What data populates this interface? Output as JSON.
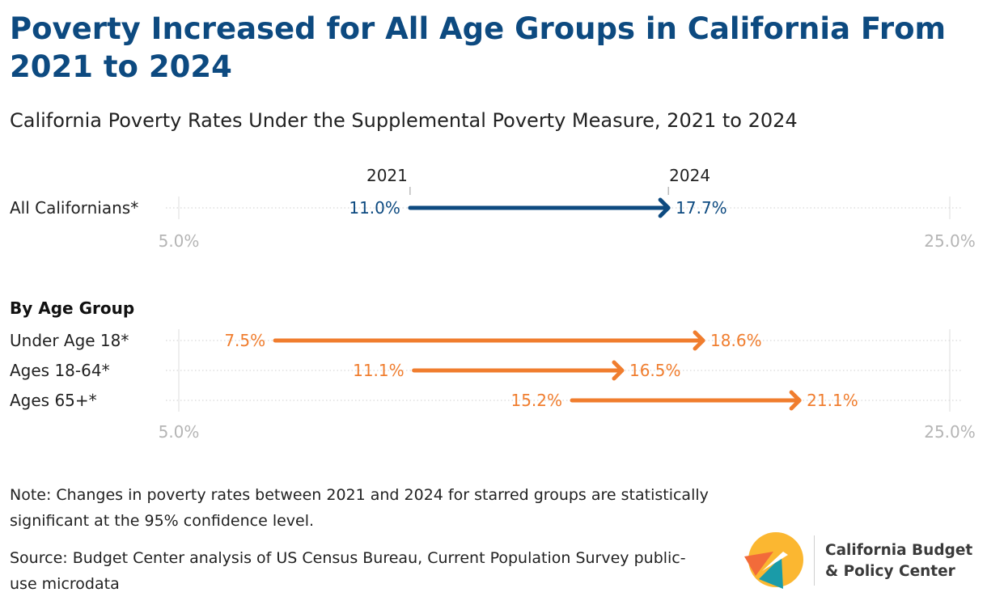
{
  "title": "Poverty Increased for All Age Groups in California From 2021 to 2024",
  "subtitle": "California Poverty Rates Under the Supplemental Poverty Measure, 2021 to 2024",
  "note": "Note: Changes in poverty rates between 2021 and 2024 for starred groups are statistically significant at the 95% confidence level.",
  "source": "Source: Budget Center analysis of US Census Bureau, Current Population Survey public-use microdata",
  "logo": {
    "line1": "California Budget",
    "line2": "& Policy Center",
    "colors": [
      "#fbb731",
      "#f26b3a",
      "#1a9ba8"
    ]
  },
  "colors": {
    "title": "#0d4a80",
    "all_series": "#0d4a80",
    "age_series": "#f07d2e",
    "axis_label": "#b5b5b5"
  },
  "chart_data": {
    "type": "dumbbell",
    "xlim": [
      5.0,
      25.0
    ],
    "axis_labels": [
      "5.0%",
      "25.0%"
    ],
    "start_label": "2021",
    "end_label": "2024",
    "panels": [
      {
        "heading": "",
        "color": "#0d4a80",
        "rows": [
          {
            "label": "All Californians*",
            "start": 11.0,
            "end": 17.7,
            "start_label": "11.0%",
            "end_label": "17.7%"
          }
        ]
      },
      {
        "heading": "By Age Group",
        "color": "#f07d2e",
        "rows": [
          {
            "label": "Under Age 18*",
            "start": 7.5,
            "end": 18.6,
            "start_label": "7.5%",
            "end_label": "18.6%"
          },
          {
            "label": "Ages 18-64*",
            "start": 11.1,
            "end": 16.5,
            "start_label": "11.1%",
            "end_label": "16.5%"
          },
          {
            "label": "Ages 65+*",
            "start": 15.2,
            "end": 21.1,
            "start_label": "15.2%",
            "end_label": "21.1%"
          }
        ]
      }
    ]
  }
}
